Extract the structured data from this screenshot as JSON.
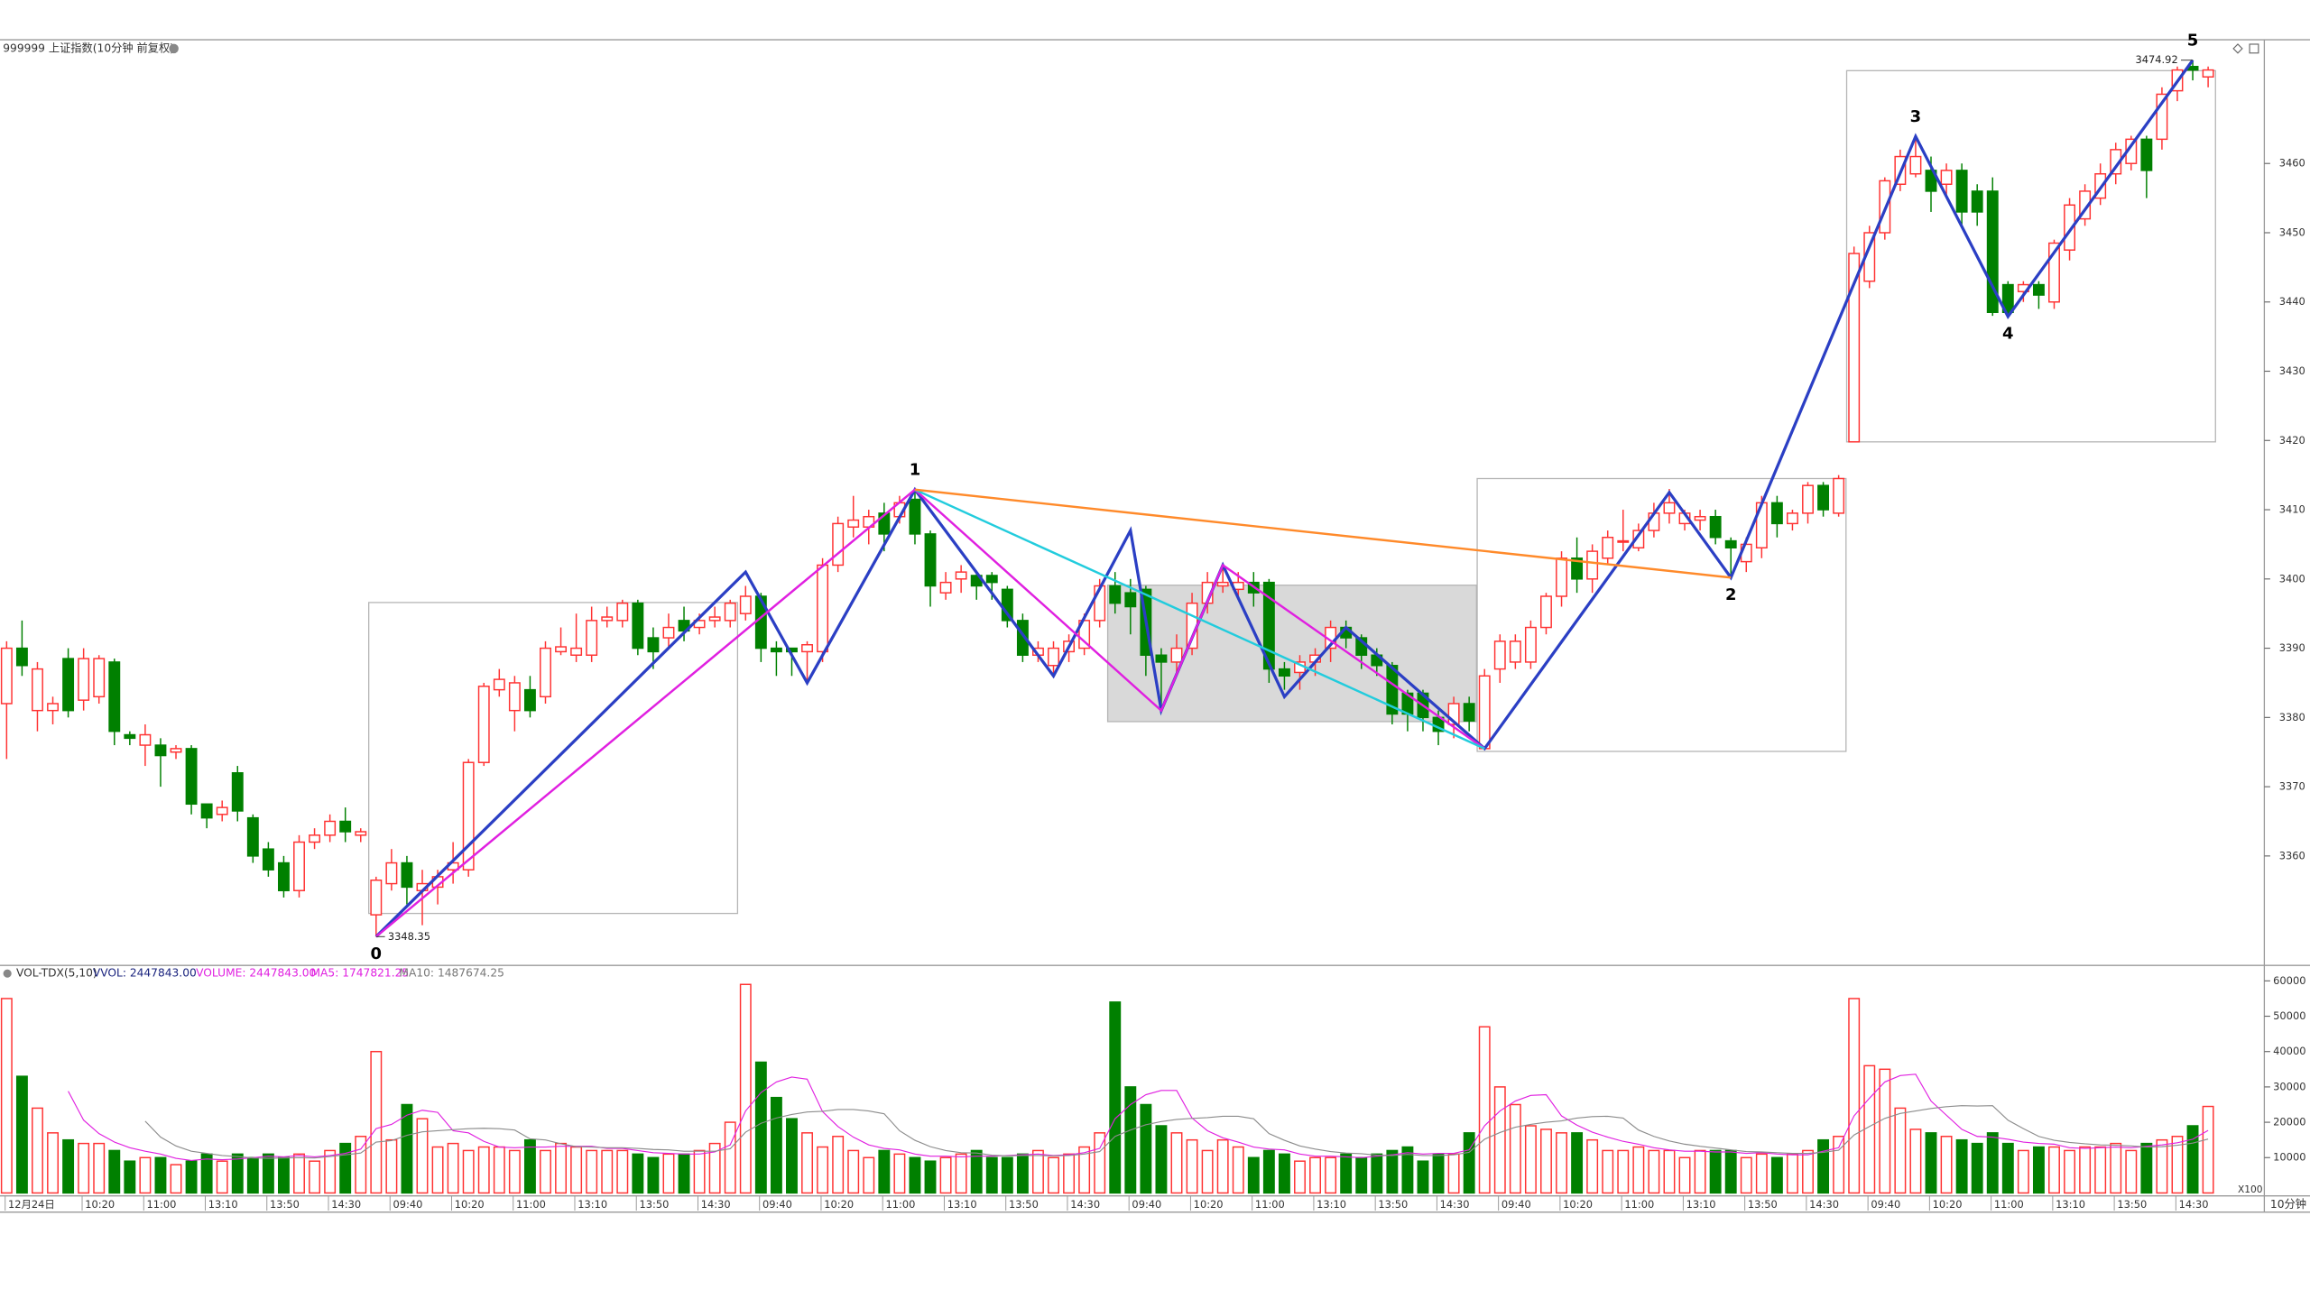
{
  "chart_data": {
    "type": "candlestick",
    "title": "999999 上证指数(10分钟 前复权)",
    "categories": [
      "12月24日",
      null,
      null,
      null,
      null,
      "10:20",
      null,
      null,
      null,
      "11:00",
      null,
      null,
      null,
      "13:10",
      null,
      null,
      null,
      "13:50",
      null,
      null,
      null,
      "14:30",
      null,
      null,
      null,
      "09:40",
      null,
      null,
      null,
      "10:20",
      null,
      null,
      null,
      "11:00",
      null,
      null,
      null,
      "13:10",
      null,
      null,
      null,
      "13:50",
      null,
      null,
      null,
      "14:30",
      null,
      null,
      null,
      "09:40",
      null,
      null,
      null,
      "10:20",
      null,
      null,
      null,
      "11:00",
      null,
      null,
      null,
      "13:10",
      null,
      null,
      null,
      "13:50",
      null,
      null,
      null,
      "14:30",
      null,
      null,
      null,
      "09:40",
      null,
      null,
      null,
      "10:20",
      null,
      null,
      null,
      "11:00",
      null,
      null,
      null,
      "13:10",
      null,
      null,
      null,
      "13:50",
      null,
      null,
      null,
      "14:30",
      null,
      null,
      null,
      "09:40",
      null,
      null,
      null,
      "10:20",
      null,
      null,
      null,
      "11:00",
      null,
      null,
      null,
      "13:10",
      null,
      null,
      null,
      "13:50",
      null,
      null,
      null,
      "14:30",
      null,
      null,
      null,
      "09:40",
      null,
      null,
      null,
      "10:20",
      null,
      null,
      null,
      "11:00",
      null,
      null,
      null,
      "13:10",
      null,
      null,
      null,
      "13:50",
      null,
      null,
      null,
      "14:30",
      null,
      null
    ],
    "open": [
      3382,
      3390,
      3381,
      3381,
      3388.5,
      3382.5,
      3383,
      3388,
      3377.5,
      3376,
      3376,
      3375,
      3375.5,
      3367.5,
      3366,
      3372,
      3365.5,
      3361,
      3359,
      3355,
      3362,
      3363,
      3365,
      3363,
      3351.5,
      3356,
      3359,
      3355,
      3355.5,
      3358,
      3358,
      3373.5,
      3384,
      3381,
      3384,
      3383,
      3389.5,
      3389,
      3389,
      3394,
      3394,
      3396.5,
      3391.5,
      3391.5,
      3394,
      3393,
      3394,
      3394,
      3395,
      3397.5,
      3390,
      3390,
      3389.5,
      3389.5,
      3402,
      3407.5,
      3407.5,
      3409.5,
      3409,
      3411.5,
      3406.5,
      3398,
      3400,
      3400.5,
      3400.5,
      3398.5,
      3394,
      3389,
      3387.5,
      3389.5,
      3390,
      3394,
      3399,
      3398,
      3398.5,
      3389,
      3388,
      3390,
      3396.5,
      3399,
      3398.5,
      3399.5,
      3399.5,
      3387,
      3386.5,
      3388,
      3390,
      3393,
      3391.5,
      3389,
      3387.5,
      3383.5,
      3383.5,
      3380,
      3379,
      3382,
      3375.5,
      3387,
      3388,
      3388,
      3393,
      3397.5,
      3403,
      3400,
      3403,
      3405.5,
      3404.5,
      3407,
      3409.5,
      3408,
      3408.5,
      3409,
      3405.5,
      3402.5,
      3404.5,
      3411,
      3408,
      3409.5,
      3413.5,
      3409.5,
      3419.8,
      3443,
      3450,
      3457,
      3458.5,
      3459,
      3457,
      3459,
      3456,
      3456,
      3442.5,
      3441.5,
      3442.5,
      3440,
      3447.5,
      3452,
      3455,
      3458.5,
      3460,
      3463.5,
      3463.5,
      3470.5,
      3474,
      3472.5
    ],
    "close": [
      3390,
      3387.5,
      3387,
      3382,
      3381,
      3388.5,
      3388.5,
      3378,
      3377,
      3377.5,
      3374.5,
      3375.5,
      3367.5,
      3365.5,
      3367,
      3366.5,
      3360,
      3358,
      3355,
      3362,
      3363,
      3365,
      3363.5,
      3363.5,
      3356.5,
      3359,
      3355.5,
      3356,
      3357,
      3359,
      3373.5,
      3384.5,
      3385.5,
      3385,
      3381,
      3390,
      3390.2,
      3390,
      3394,
      3394.5,
      3396.5,
      3390,
      3389.5,
      3393,
      3392.5,
      3394,
      3394.5,
      3396.5,
      3397.5,
      3390,
      3389.5,
      3389.5,
      3390.5,
      3402,
      3408,
      3408.5,
      3409,
      3406.5,
      3411,
      3406.5,
      3399,
      3399.5,
      3401,
      3399,
      3399.5,
      3394,
      3389,
      3390,
      3390,
      3391,
      3394,
      3399,
      3396.5,
      3396,
      3389,
      3388,
      3390,
      3396.5,
      3399.5,
      3399.5,
      3399.5,
      3398,
      3387,
      3386,
      3388,
      3389,
      3393,
      3391.5,
      3389,
      3387.5,
      3380.5,
      3380.5,
      3380,
      3378,
      3382,
      3379.5,
      3386,
      3391,
      3391,
      3393,
      3397.5,
      3403,
      3400,
      3404,
      3406,
      3405.5,
      3407,
      3409.5,
      3411,
      3409.5,
      3409,
      3406,
      3404.5,
      3405,
      3411,
      3408,
      3409.5,
      3413.5,
      3410,
      3414.5,
      3447,
      3450,
      3457.5,
      3461,
      3461,
      3456,
      3459,
      3453,
      3453,
      3438.5,
      3438.5,
      3442.5,
      3441,
      3448.5,
      3454,
      3456,
      3458.5,
      3462,
      3463.5,
      3459,
      3470,
      3473.5,
      3473.5,
      3473.5
    ],
    "high": [
      3391,
      3394,
      3388,
      3383,
      3390,
      3390,
      3389,
      3388.5,
      3378,
      3379,
      3377,
      3376,
      3376,
      3367,
      3368,
      3373,
      3366,
      3362,
      3360,
      3363,
      3364,
      3366,
      3367,
      3364,
      3357,
      3361,
      3360,
      3358,
      3358,
      3362,
      3374,
      3385,
      3387,
      3386,
      3386,
      3391,
      3393,
      3395,
      3396,
      3396,
      3397,
      3397,
      3393,
      3395,
      3396,
      3395,
      3396,
      3397,
      3399,
      3398,
      3391,
      3390,
      3391,
      3403,
      3409,
      3412,
      3410,
      3411,
      3412,
      3412.9,
      3407,
      3401,
      3402,
      3401,
      3401,
      3399,
      3395,
      3391,
      3391,
      3392,
      3395,
      3400,
      3401,
      3400,
      3399,
      3390,
      3392,
      3398,
      3401,
      3402,
      3401,
      3401,
      3400,
      3388,
      3389,
      3390,
      3394,
      3394,
      3392,
      3390,
      3388,
      3384,
      3384,
      3381,
      3383,
      3383,
      3387,
      3392,
      3392,
      3394,
      3398,
      3404,
      3406,
      3405,
      3407,
      3410,
      3408,
      3411,
      3413,
      3410,
      3410,
      3410,
      3406,
      3406,
      3412,
      3412,
      3410,
      3414,
      3414,
      3415,
      3448,
      3451,
      3458,
      3462,
      3463.9,
      3461,
      3460,
      3460,
      3457,
      3458,
      3443,
      3443,
      3443,
      3449,
      3455,
      3457,
      3460,
      3463,
      3464,
      3464,
      3471,
      3474,
      3474.92,
      3474
    ],
    "low": [
      3374,
      3386,
      3378,
      3379,
      3380,
      3381,
      3382,
      3376,
      3376,
      3373,
      3370,
      3374,
      3366,
      3364,
      3365,
      3365,
      3359,
      3357,
      3354,
      3354,
      3361,
      3362,
      3362,
      3362,
      3348.35,
      3355,
      3353,
      3350,
      3353,
      3356,
      3357,
      3373,
      3383,
      3378,
      3380,
      3382,
      3389,
      3388,
      3388,
      3393,
      3393,
      3389,
      3387,
      3390,
      3391,
      3392,
      3393,
      3393,
      3394,
      3388,
      3386,
      3386,
      3385,
      3388,
      3401,
      3406,
      3405,
      3404,
      3408,
      3405,
      3396,
      3397,
      3398,
      3397,
      3397,
      3393,
      3388,
      3388,
      3386,
      3388,
      3389,
      3393,
      3395,
      3392,
      3386,
      3381,
      3386,
      3389,
      3395,
      3398,
      3397,
      3396,
      3385,
      3384,
      3384,
      3386,
      3388,
      3390,
      3387,
      3386,
      3379,
      3378,
      3378,
      3376,
      3377,
      3378,
      3375.5,
      3385,
      3387,
      3387,
      3392,
      3396,
      3398,
      3398,
      3402,
      3404,
      3404,
      3406,
      3408,
      3407,
      3407,
      3405,
      3400.2,
      3401,
      3403,
      3406,
      3407,
      3408,
      3409,
      3409,
      3419.8,
      3442,
      3449,
      3456,
      3458,
      3453,
      3455,
      3451,
      3451,
      3438,
      3437.9,
      3440,
      3439,
      3439,
      3446,
      3451,
      3454,
      3457,
      3459,
      3455,
      3462,
      3469,
      3472,
      3471
    ],
    "up_color": "#ff3232",
    "down_color": "#008000",
    "ylim": [
      3344.3,
      3475.1
    ],
    "yticks": [
      3360,
      3370,
      3380,
      3390,
      3400,
      3410,
      3420,
      3430,
      3440,
      3450,
      3460
    ],
    "lines": [
      {
        "color": "#2b3fc4",
        "index": [
          24,
          48,
          52,
          59,
          68,
          73,
          75,
          79,
          83,
          87,
          96,
          108,
          112,
          124,
          130,
          142
        ],
        "values": [
          3348.35,
          3401,
          3385,
          3412.9,
          3386,
          3407,
          3381,
          3402,
          3383,
          3393,
          3375.5,
          3412.5,
          3400.2,
          3463.9,
          3437.9,
          3474.92
        ]
      },
      {
        "color": "#e020e0",
        "index": [
          24,
          59,
          75,
          79,
          96
        ],
        "values": [
          3348.35,
          3412.9,
          3381,
          3402,
          3375.5
        ]
      },
      {
        "color": "#22ccdd",
        "index": [
          59,
          96
        ],
        "values": [
          3412.9,
          3375.5
        ]
      },
      {
        "color": "#ff8a2a",
        "index": [
          59,
          112
        ],
        "values": [
          3412.9,
          3400.2
        ]
      }
    ],
    "boxes": [
      {
        "from": 24,
        "to": 47,
        "high": 3396.6,
        "low": 3351.7
      },
      {
        "from": 72,
        "to": 95,
        "high": 3399.1,
        "low": 3379.4,
        "fill": "#d9d9d9"
      },
      {
        "from": 96,
        "to": 119,
        "high": 3414.5,
        "low": 3375.1
      },
      {
        "from": 120,
        "to": 143,
        "high": 3473.4,
        "low": 3419.8
      }
    ],
    "wave_labels": [
      {
        "label": "0",
        "index": 24,
        "value": 3348.35,
        "position": "below"
      },
      {
        "label": "1",
        "index": 59,
        "value": 3412.9,
        "position": "above"
      },
      {
        "label": "2",
        "index": 112,
        "value": 3400.2,
        "position": "below"
      },
      {
        "label": "3",
        "index": 124,
        "value": 3463.9,
        "position": "above"
      },
      {
        "label": "4",
        "index": 130,
        "value": 3437.9,
        "position": "below"
      },
      {
        "label": "5",
        "index": 142,
        "value": 3474.92,
        "position": "above"
      }
    ],
    "price_labels": [
      {
        "index": 24,
        "value": 3348.35
      },
      {
        "index": 142,
        "value": 3474.92
      }
    ],
    "volume": {
      "title": "VOL-TDX(5,10)",
      "vvol": "VVOL: 2447843.00",
      "volume_label": "VOLUME: 2447843.00",
      "ma5_label": "MA5: 1747821.25",
      "ma10_label": "MA10: 1487674.25",
      "unit": "X100",
      "period": "10分钟",
      "values": [
        55000,
        33000,
        24000,
        17000,
        15000,
        14000,
        14000,
        12000,
        9000,
        10000,
        10000,
        8000,
        9000,
        11000,
        9000,
        11000,
        10000,
        11000,
        10000,
        11000,
        9000,
        12000,
        14000,
        16000,
        40000,
        15000,
        25000,
        21000,
        13000,
        14000,
        12000,
        13000,
        13000,
        12000,
        15000,
        12000,
        14000,
        13000,
        12000,
        12000,
        12000,
        11000,
        10000,
        11000,
        11000,
        12000,
        14000,
        20000,
        59000,
        37000,
        27000,
        21000,
        17000,
        13000,
        16000,
        12000,
        10000,
        12000,
        11000,
        10000,
        9000,
        10000,
        11000,
        12000,
        10000,
        10000,
        11000,
        12000,
        10000,
        11000,
        13000,
        17000,
        54000,
        30000,
        25000,
        19000,
        17000,
        15000,
        12000,
        15000,
        13000,
        10000,
        12000,
        11000,
        9000,
        10000,
        10000,
        11000,
        10000,
        11000,
        12000,
        13000,
        9000,
        11000,
        11000,
        17000,
        47000,
        30000,
        25000,
        19000,
        18000,
        17000,
        17000,
        15000,
        12000,
        12000,
        13000,
        12000,
        12000,
        10000,
        12000,
        12000,
        12000,
        10000,
        11000,
        10000,
        11000,
        12000,
        15000,
        16000,
        55000,
        36000,
        35000,
        24000,
        18000,
        17000,
        16000,
        15000,
        14000,
        17000,
        14000,
        12000,
        13000,
        13000,
        12000,
        13000,
        13000,
        14000,
        12000,
        14000,
        15000,
        16000,
        19000,
        24478.43
      ],
      "ylim": [
        0,
        63750
      ],
      "yticks": [
        10000,
        20000,
        30000,
        40000,
        50000,
        60000
      ],
      "ma_colors": [
        "#e020e0",
        "#8c8c8c"
      ]
    }
  }
}
